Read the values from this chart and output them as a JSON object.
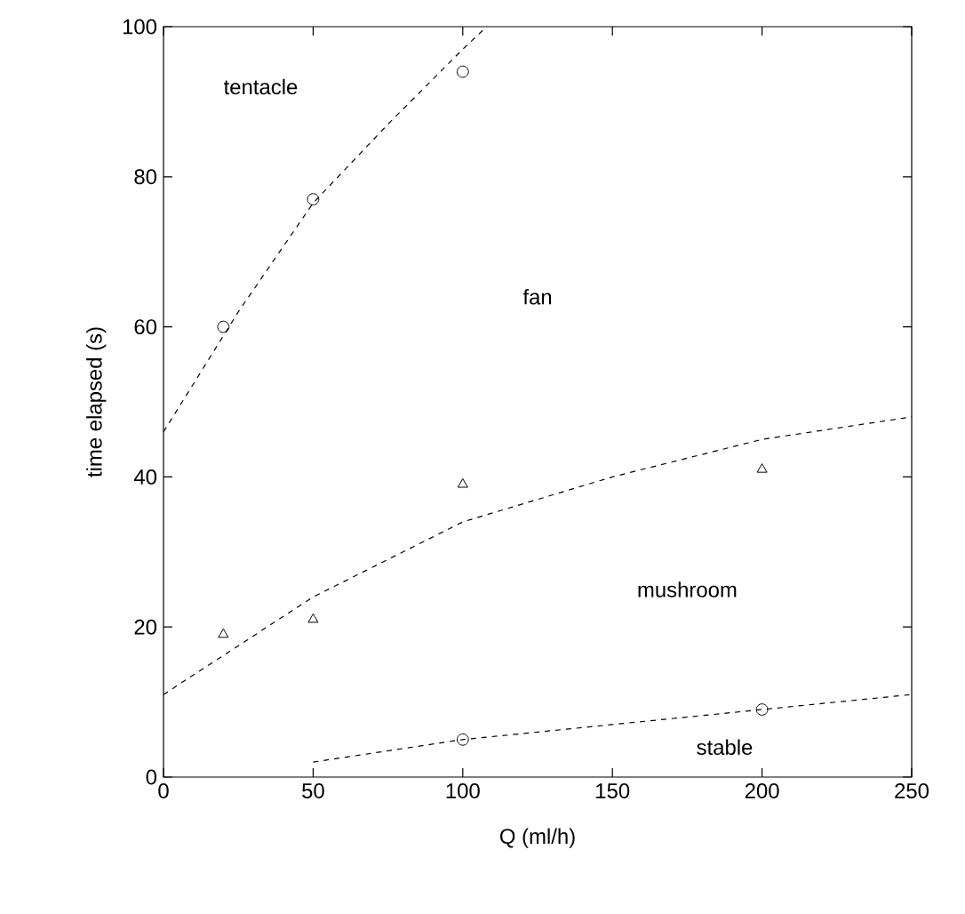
{
  "chart_data": {
    "type": "scatter",
    "xlabel": "Q (ml/h)",
    "ylabel": "time elapsed (s)",
    "xlim": [
      0,
      250
    ],
    "ylim": [
      0,
      100
    ],
    "xticks": [
      0,
      50,
      100,
      150,
      200,
      250
    ],
    "yticks": [
      0,
      20,
      40,
      60,
      80,
      100
    ],
    "grid": false,
    "series": [
      {
        "marker": "circle",
        "color": "#000000",
        "x": [
          20,
          50,
          100
        ],
        "values": [
          60,
          77,
          94
        ]
      },
      {
        "marker": "triangle",
        "color": "#000000",
        "x": [
          20,
          50,
          100,
          200
        ],
        "values": [
          19,
          21,
          39,
          41
        ]
      },
      {
        "marker": "circle",
        "color": "#000000",
        "x": [
          100,
          200
        ],
        "values": [
          5,
          9
        ]
      },
      {
        "type": "line",
        "line_style": "dashed",
        "marker": "none",
        "color": "#000000",
        "x": [
          0,
          25,
          50,
          75,
          100,
          108
        ],
        "values": [
          46,
          62,
          76.5,
          87,
          97,
          100
        ]
      },
      {
        "type": "line",
        "line_style": "dashed",
        "marker": "none",
        "color": "#000000",
        "x": [
          0,
          50,
          100,
          150,
          200,
          250
        ],
        "values": [
          11,
          24,
          34,
          40,
          45,
          48
        ]
      },
      {
        "type": "line",
        "line_style": "dashed",
        "marker": "none",
        "color": "#000000",
        "x": [
          50,
          100,
          150,
          200,
          250
        ],
        "values": [
          2,
          5,
          7,
          9,
          11
        ]
      }
    ],
    "annotations": [
      "tentacle",
      "fan",
      "mushroom",
      "stable"
    ]
  }
}
